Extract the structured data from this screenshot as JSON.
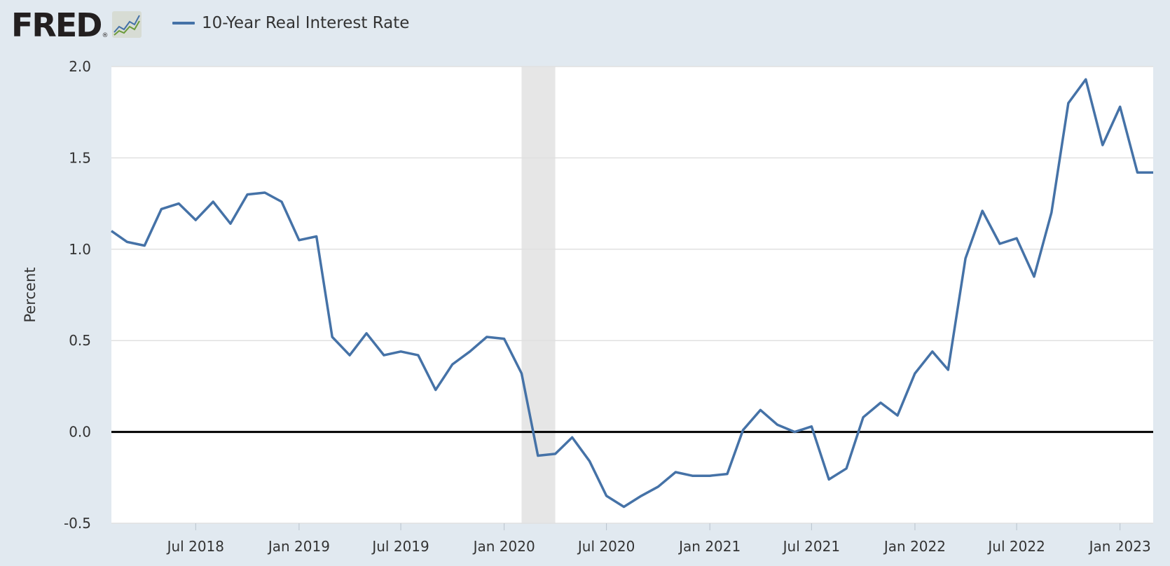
{
  "header": {
    "logo_text": "FRED",
    "logo_reg": "®",
    "logo_icon": "line-chart-icon",
    "legend_label": "10-Year Real Interest Rate"
  },
  "colors": {
    "background": "#e1e9f0",
    "plot_background": "#ffffff",
    "series": "#4572a7",
    "recession": "#e6e6e6",
    "gridline": "#e0e0e0",
    "zero_line": "#000000"
  },
  "chart_data": {
    "type": "line",
    "title": "",
    "xlabel": "",
    "ylabel": "Percent",
    "ylim": [
      -0.5,
      2.0
    ],
    "yticks": [
      -0.5,
      0.0,
      0.5,
      1.0,
      1.5,
      2.0
    ],
    "ytick_labels": [
      "-0.5",
      "0.0",
      "0.5",
      "1.0",
      "1.5",
      "2.0"
    ],
    "xlim": [
      "2018-02-01",
      "2023-03-01"
    ],
    "xticks": [
      "2018-07-01",
      "2019-01-01",
      "2019-07-01",
      "2020-01-01",
      "2020-07-01",
      "2021-01-01",
      "2021-07-01",
      "2022-01-01",
      "2022-07-01",
      "2023-01-01"
    ],
    "xtick_labels": [
      "Jul 2018",
      "Jan 2019",
      "Jul 2019",
      "Jan 2020",
      "Jul 2020",
      "Jan 2021",
      "Jul 2021",
      "Jan 2022",
      "Jul 2022",
      "Jan 2023"
    ],
    "grid": true,
    "legend": "top-left",
    "recessions": [
      {
        "start": "2020-02-01",
        "end": "2020-04-01"
      }
    ],
    "series": [
      {
        "name": "10-Year Real Interest Rate",
        "x": [
          "2018-02-01",
          "2018-03-01",
          "2018-04-01",
          "2018-05-01",
          "2018-06-01",
          "2018-07-01",
          "2018-08-01",
          "2018-09-01",
          "2018-10-01",
          "2018-11-01",
          "2018-12-01",
          "2019-01-01",
          "2019-02-01",
          "2019-03-01",
          "2019-04-01",
          "2019-05-01",
          "2019-06-01",
          "2019-07-01",
          "2019-08-01",
          "2019-09-01",
          "2019-10-01",
          "2019-11-01",
          "2019-12-01",
          "2020-01-01",
          "2020-02-01",
          "2020-03-01",
          "2020-04-01",
          "2020-05-01",
          "2020-06-01",
          "2020-07-01",
          "2020-08-01",
          "2020-09-01",
          "2020-10-01",
          "2020-11-01",
          "2020-12-01",
          "2021-01-01",
          "2021-02-01",
          "2021-03-01",
          "2021-04-01",
          "2021-05-01",
          "2021-06-01",
          "2021-07-01",
          "2021-08-01",
          "2021-09-01",
          "2021-10-01",
          "2021-11-01",
          "2021-12-01",
          "2022-01-01",
          "2022-02-01",
          "2022-03-01",
          "2022-04-01",
          "2022-05-01",
          "2022-06-01",
          "2022-07-01",
          "2022-08-01",
          "2022-09-01",
          "2022-10-01",
          "2022-11-01",
          "2022-12-01",
          "2023-01-01",
          "2023-02-01",
          "2023-03-01"
        ],
        "values": [
          1.1,
          1.04,
          1.02,
          1.22,
          1.25,
          1.16,
          1.26,
          1.14,
          1.3,
          1.31,
          1.26,
          1.05,
          1.07,
          0.52,
          0.42,
          0.54,
          0.42,
          0.44,
          0.42,
          0.23,
          0.37,
          0.44,
          0.52,
          0.51,
          0.32,
          -0.13,
          -0.12,
          -0.03,
          -0.16,
          -0.35,
          -0.41,
          -0.35,
          -0.3,
          -0.22,
          -0.24,
          -0.24,
          -0.23,
          0.01,
          0.12,
          0.04,
          0.0,
          0.03,
          -0.26,
          -0.2,
          0.08,
          0.16,
          0.09,
          0.32,
          0.44,
          0.34,
          0.95,
          1.21,
          1.03,
          1.06,
          0.85,
          1.2,
          1.8,
          1.93,
          1.57,
          1.78,
          1.42,
          1.42
        ]
      }
    ]
  }
}
